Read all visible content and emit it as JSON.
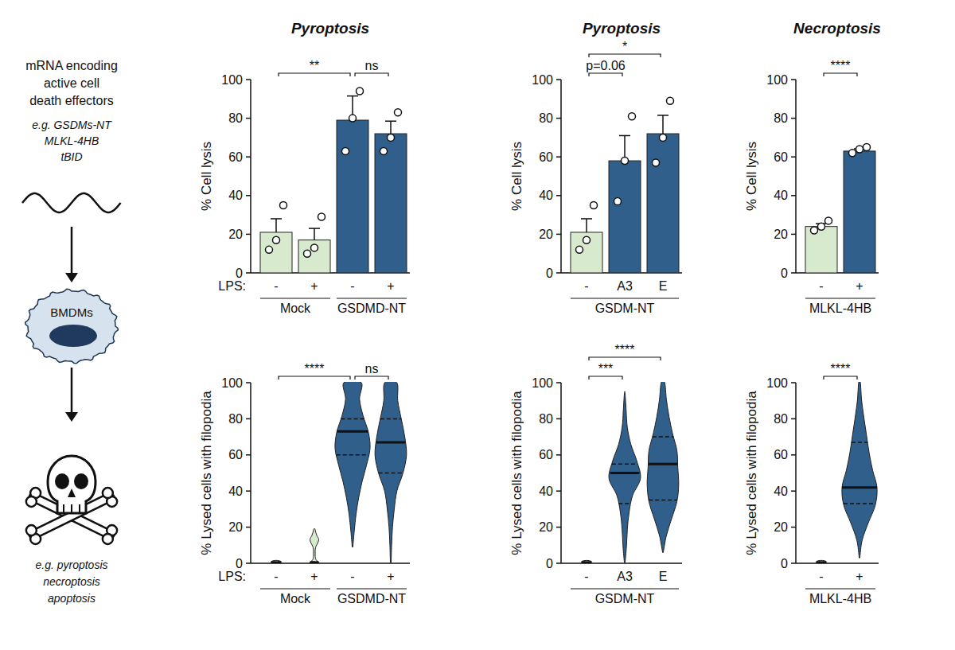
{
  "chart_data": [
    {
      "type": "bar",
      "title": "Pyroptosis",
      "y_label": "% Cell lysis",
      "x_label": "LPS:",
      "categories": [
        "-",
        "+",
        "-",
        "+"
      ],
      "groups": [
        {
          "label": "Mock",
          "span": [
            0,
            1
          ]
        },
        {
          "label": "GSDMD-NT",
          "span": [
            2,
            3
          ]
        }
      ],
      "values": [
        21,
        17,
        79,
        72
      ],
      "errors": [
        7,
        6,
        12.5,
        6.5
      ],
      "points": [
        [
          12,
          17,
          35
        ],
        [
          10,
          13,
          29
        ],
        [
          63,
          80,
          94
        ],
        [
          63,
          70,
          83
        ]
      ],
      "colors": [
        "#d7eacd",
        "#d7eacd",
        "#2f5f8a",
        "#2f5f8a"
      ],
      "ylim": [
        0,
        100
      ],
      "yticks": [
        0,
        20,
        40,
        60,
        80,
        100
      ],
      "annotations": [
        {
          "label": "**",
          "span": [
            0,
            2
          ]
        },
        {
          "label": "ns",
          "span": [
            2,
            3
          ]
        }
      ]
    },
    {
      "type": "bar",
      "title": "Pyroptosis",
      "y_label": "% Cell lysis",
      "categories": [
        "-",
        "A3",
        "E"
      ],
      "groups": [
        {
          "label": "GSDM-NT",
          "span": [
            0,
            2
          ]
        }
      ],
      "values": [
        21,
        58,
        72
      ],
      "errors": [
        7,
        13,
        9.5
      ],
      "points": [
        [
          12,
          17,
          35
        ],
        [
          37,
          58,
          81
        ],
        [
          57,
          70,
          89
        ]
      ],
      "colors": [
        "#d7eacd",
        "#2f5f8a",
        "#2f5f8a"
      ],
      "ylim": [
        0,
        100
      ],
      "yticks": [
        0,
        20,
        40,
        60,
        80,
        100
      ],
      "annotations": [
        {
          "label": "p=0.06",
          "span": [
            0,
            1
          ]
        },
        {
          "label": "*",
          "span": [
            0,
            2
          ]
        }
      ]
    },
    {
      "type": "bar",
      "title": "Necroptosis",
      "y_label": "% Cell lysis",
      "categories": [
        "-",
        "+"
      ],
      "groups": [
        {
          "label": "MLKL-4HB",
          "span": [
            0,
            1
          ]
        }
      ],
      "values": [
        24,
        63
      ],
      "errors": [
        1.5,
        1.2
      ],
      "points": [
        [
          22,
          24,
          27
        ],
        [
          62,
          64,
          65
        ]
      ],
      "colors": [
        "#d7eacd",
        "#2f5f8a"
      ],
      "ylim": [
        0,
        100
      ],
      "yticks": [
        0,
        20,
        40,
        60,
        80,
        100
      ],
      "annotations": [
        {
          "label": "****",
          "span": [
            0,
            1
          ]
        }
      ]
    },
    {
      "type": "violin",
      "y_label": "% Lysed cells with filopodia",
      "x_label": "LPS:",
      "categories": [
        "-",
        "+",
        "-",
        "+"
      ],
      "groups": [
        {
          "label": "Mock",
          "span": [
            0,
            1
          ]
        },
        {
          "label": "GSDMD-NT",
          "span": [
            2,
            3
          ]
        }
      ],
      "violins": [
        {
          "min": 0,
          "max": 1.5,
          "median": 0.5,
          "q1": 0.2,
          "q3": 0.8,
          "density": [
            0.2,
            0.3,
            0.15
          ]
        },
        {
          "min": 0,
          "max": 19,
          "median": 0.5,
          "q1": 0.2,
          "q3": 0.8,
          "density": [
            0.3,
            0.1,
            0.05,
            0.05,
            0.05,
            0.1,
            0.2,
            0.25,
            0.15,
            0.08,
            0.03
          ]
        },
        {
          "min": 9,
          "max": 100,
          "median": 73,
          "q1": 60,
          "q3": 80,
          "density": [
            0.02,
            0.1,
            0.2,
            0.35,
            0.55,
            0.8,
            1,
            0.9,
            0.6,
            0.4,
            0.5
          ]
        },
        {
          "min": 0,
          "max": 100,
          "median": 67,
          "q1": 50,
          "q3": 80,
          "density": [
            0.02,
            0.05,
            0.1,
            0.2,
            0.35,
            0.7,
            0.9,
            0.8,
            0.6,
            0.4,
            0.35
          ]
        }
      ],
      "colors": [
        "#d7eacd",
        "#d7eacd",
        "#2f5f8a",
        "#2f5f8a"
      ],
      "ylim": [
        0,
        100
      ],
      "yticks": [
        0,
        20,
        40,
        60,
        80,
        100
      ],
      "annotations": [
        {
          "label": "****",
          "span": [
            0,
            2
          ]
        },
        {
          "label": "ns",
          "span": [
            2,
            3
          ]
        }
      ]
    },
    {
      "type": "violin",
      "y_label": "% Lysed cells with filopodia",
      "categories": [
        "-",
        "A3",
        "E"
      ],
      "groups": [
        {
          "label": "GSDM-NT",
          "span": [
            0,
            2
          ]
        }
      ],
      "violins": [
        {
          "min": 0,
          "max": 1.5,
          "median": 0.5,
          "q1": 0.2,
          "q3": 0.8,
          "density": [
            0.2,
            0.3,
            0.15
          ]
        },
        {
          "min": 0,
          "max": 94,
          "median": 50,
          "q1": 33,
          "q3": 55,
          "density": [
            0.02,
            0.1,
            0.15,
            0.25,
            0.45,
            0.9,
            0.7,
            0.35,
            0.15,
            0.08,
            0.02
          ]
        },
        {
          "min": 6,
          "max": 100,
          "median": 55,
          "q1": 35,
          "q3": 70,
          "density": [
            0.02,
            0.2,
            0.5,
            0.8,
            0.9,
            0.85,
            0.8,
            0.55,
            0.35,
            0.2,
            0.1
          ]
        }
      ],
      "colors": [
        "#d7eacd",
        "#2f5f8a",
        "#2f5f8a"
      ],
      "ylim": [
        0,
        100
      ],
      "yticks": [
        0,
        20,
        40,
        60,
        80,
        100
      ],
      "annotations": [
        {
          "label": "***",
          "span": [
            0,
            1
          ]
        },
        {
          "label": "****",
          "span": [
            0,
            2
          ]
        }
      ]
    },
    {
      "type": "violin",
      "y_label": "% Lysed cells with filopodia",
      "categories": [
        "-",
        "+"
      ],
      "groups": [
        {
          "label": "MLKL-4HB",
          "span": [
            0,
            1
          ]
        }
      ],
      "violins": [
        {
          "min": 0,
          "max": 1.5,
          "median": 0.5,
          "q1": 0.2,
          "q3": 0.8,
          "density": [
            0.2,
            0.3,
            0.15
          ]
        },
        {
          "min": 3,
          "max": 100,
          "median": 42,
          "q1": 33,
          "q3": 67,
          "density": [
            0.02,
            0.15,
            0.5,
            0.9,
            1,
            0.75,
            0.55,
            0.4,
            0.25,
            0.12,
            0.05
          ]
        }
      ],
      "colors": [
        "#d7eacd",
        "#2f5f8a"
      ],
      "ylim": [
        0,
        100
      ],
      "yticks": [
        0,
        20,
        40,
        60,
        80,
        100
      ],
      "annotations": [
        {
          "label": "****",
          "span": [
            0,
            1
          ]
        }
      ]
    }
  ],
  "schematic": {
    "lines": [
      "mRNA encoding",
      "active cell",
      "death effectors"
    ],
    "examples": [
      "e.g. GSDMs-NT",
      "MLKL-4HB",
      "tBID"
    ],
    "cell_label": "BMDMs",
    "outcomes": [
      "e.g. pyroptosis",
      "necroptosis",
      "apoptosis"
    ]
  }
}
